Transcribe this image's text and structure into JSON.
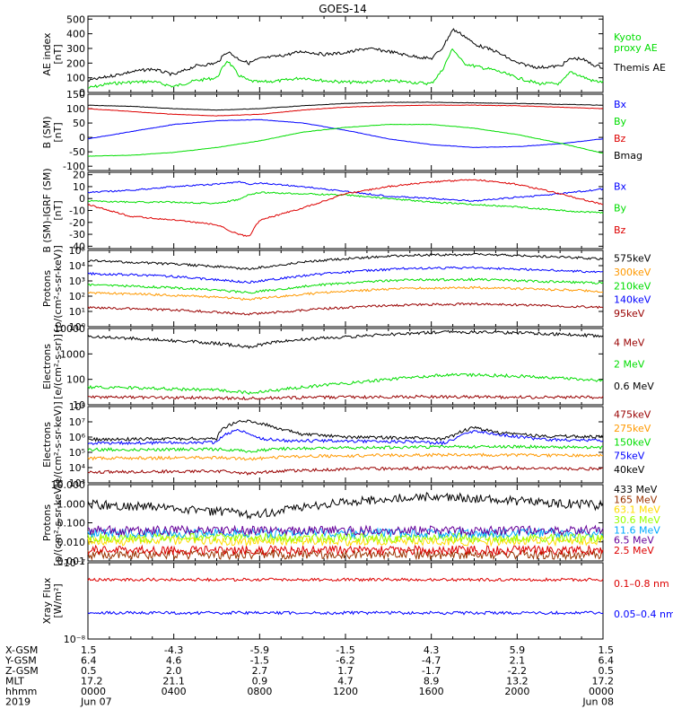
{
  "title": "GOES-14",
  "colors": {
    "black": "#000000",
    "green": "#00dd00",
    "blue": "#0000ff",
    "red": "#dd0000",
    "orange": "#ff9900",
    "darkred": "#990000",
    "cyan": "#00aaff",
    "lime": "#99ff00",
    "yellow": "#ffdd00",
    "purple": "#660099",
    "brown": "#993300"
  },
  "chart_data": [
    {
      "type": "line",
      "ylabel": "AE index\n[nT]",
      "yticks": [
        "0",
        "100",
        "200",
        "300",
        "400",
        "500"
      ],
      "ylim": [
        0,
        520
      ],
      "xlim": [
        0,
        24
      ],
      "series": [
        {
          "name": "Kyoto\nproxy AE",
          "color": "#00dd00",
          "x": [
            0,
            1,
            2,
            3,
            4,
            5,
            6,
            6.5,
            7,
            7.5,
            8,
            9,
            10,
            11,
            12,
            13,
            14,
            15,
            16,
            16.5,
            17,
            17.5,
            18,
            19,
            20,
            21,
            22,
            22.5,
            23,
            23.5,
            24
          ],
          "y": [
            30,
            60,
            70,
            75,
            40,
            80,
            100,
            220,
            120,
            80,
            70,
            80,
            100,
            80,
            70,
            70,
            80,
            70,
            60,
            150,
            300,
            200,
            180,
            150,
            100,
            60,
            60,
            140,
            110,
            80,
            70
          ]
        },
        {
          "name": "Themis AE",
          "color": "#000000",
          "x": [
            0,
            1,
            2,
            3,
            4,
            5,
            6,
            6.5,
            7,
            7.5,
            8,
            9,
            10,
            11,
            12,
            13,
            14,
            15,
            16,
            16.5,
            17,
            17.5,
            18,
            19,
            20,
            21,
            22,
            22.5,
            23,
            23.5,
            24
          ],
          "y": [
            80,
            110,
            140,
            160,
            120,
            180,
            200,
            280,
            230,
            200,
            230,
            250,
            280,
            260,
            270,
            300,
            280,
            250,
            230,
            300,
            430,
            390,
            330,
            280,
            200,
            170,
            180,
            230,
            230,
            190,
            170
          ]
        }
      ]
    },
    {
      "type": "line",
      "ylabel": "B (SM)\n[nT]",
      "yticks": [
        "-100",
        "-50",
        "0",
        "50",
        "100",
        "150"
      ],
      "ylim": [
        -115,
        150
      ],
      "xlim": [
        0,
        24
      ],
      "series": [
        {
          "name": "Bx",
          "color": "#0000ff",
          "x": [
            0,
            2,
            4,
            6,
            8,
            10,
            12,
            14,
            16,
            18,
            20,
            22,
            24
          ],
          "y": [
            -5,
            20,
            45,
            58,
            62,
            50,
            25,
            -5,
            -25,
            -35,
            -32,
            -22,
            -5
          ]
        },
        {
          "name": "By",
          "color": "#00dd00",
          "x": [
            0,
            2,
            4,
            6,
            8,
            10,
            12,
            14,
            16,
            18,
            20,
            22,
            24
          ],
          "y": [
            -65,
            -62,
            -52,
            -35,
            -12,
            18,
            35,
            45,
            45,
            32,
            10,
            -20,
            -55
          ]
        },
        {
          "name": "Bz",
          "color": "#dd0000",
          "x": [
            0,
            2,
            4,
            6,
            8,
            10,
            12,
            14,
            16,
            18,
            20,
            22,
            24
          ],
          "y": [
            100,
            90,
            80,
            75,
            80,
            95,
            105,
            110,
            112,
            112,
            110,
            105,
            100
          ]
        },
        {
          "name": "Bmag",
          "color": "#000000",
          "x": [
            0,
            2,
            4,
            6,
            8,
            10,
            12,
            14,
            16,
            18,
            20,
            22,
            24
          ],
          "y": [
            112,
            108,
            100,
            95,
            100,
            110,
            118,
            122,
            122,
            120,
            118,
            115,
            112
          ]
        }
      ]
    },
    {
      "type": "line",
      "ylabel": "B (SM)-IGRF (SM)\n[nT]",
      "yticks": [
        "-40",
        "-30",
        "-20",
        "-10",
        "0",
        "10",
        "20"
      ],
      "ylim": [
        -42,
        22
      ],
      "xlim": [
        0,
        24
      ],
      "series": [
        {
          "name": "Bx",
          "color": "#0000ff",
          "x": [
            0,
            2,
            4,
            6,
            7,
            7.5,
            8,
            10,
            12,
            14,
            16,
            18,
            20,
            22,
            24
          ],
          "y": [
            5,
            7,
            10,
            12,
            14,
            12,
            13,
            10,
            6,
            2,
            0,
            -2,
            1,
            4,
            8
          ]
        },
        {
          "name": "By",
          "color": "#00dd00",
          "x": [
            0,
            2,
            4,
            6,
            7,
            7.5,
            8,
            10,
            12,
            14,
            16,
            18,
            20,
            22,
            24
          ],
          "y": [
            -2,
            -3,
            -3,
            -4,
            -1,
            3,
            5,
            4,
            3,
            0,
            -3,
            -5,
            -7,
            -10,
            -12
          ]
        },
        {
          "name": "Bz",
          "color": "#dd0000",
          "x": [
            0,
            2,
            4,
            6,
            7,
            7.5,
            8,
            10,
            12,
            14,
            16,
            18,
            20,
            22,
            24
          ],
          "y": [
            -5,
            -15,
            -18,
            -22,
            -30,
            -32,
            -18,
            -8,
            4,
            10,
            14,
            16,
            12,
            4,
            -5
          ]
        }
      ]
    },
    {
      "type": "line",
      "scale": "log",
      "ylabel": "Protons\n[p/(cm²-s-sr-keV)]",
      "yticks": [
        "10⁰",
        "10¹",
        "10²",
        "10³",
        "10⁴",
        "10⁵"
      ],
      "ylim": [
        1,
        150000
      ],
      "xlim": [
        0,
        24
      ],
      "series": [
        {
          "name": "575keV",
          "color": "#000000",
          "x": [
            0,
            3,
            6,
            7.5,
            9,
            12,
            15,
            18,
            21,
            24
          ],
          "y": [
            30000,
            20000,
            12000,
            8000,
            15000,
            40000,
            70000,
            80000,
            60000,
            40000
          ]
        },
        {
          "name": "300keV",
          "color": "#ff9900",
          "x": [
            0,
            3,
            6,
            7.5,
            9,
            12,
            15,
            18,
            21,
            24
          ],
          "y": [
            200,
            150,
            100,
            70,
            110,
            250,
            400,
            450,
            350,
            250
          ]
        },
        {
          "name": "210keV",
          "color": "#00dd00",
          "x": [
            0,
            3,
            6,
            7.5,
            9,
            12,
            15,
            18,
            21,
            24
          ],
          "y": [
            700,
            500,
            300,
            200,
            350,
            900,
            1500,
            1600,
            1200,
            900
          ]
        },
        {
          "name": "140keV",
          "color": "#0000ff",
          "x": [
            0,
            3,
            6,
            7.5,
            9,
            12,
            15,
            18,
            21,
            24
          ],
          "y": [
            4000,
            3000,
            1500,
            1000,
            1800,
            5000,
            9000,
            10000,
            7000,
            5000
          ]
        },
        {
          "name": "95keV",
          "color": "#990000",
          "x": [
            0,
            3,
            6,
            7.5,
            9,
            12,
            15,
            18,
            21,
            24
          ],
          "y": [
            20,
            15,
            10,
            7,
            10,
            20,
            30,
            35,
            28,
            20
          ]
        }
      ]
    },
    {
      "type": "line",
      "scale": "log",
      "ylabel": "Electrons\n[e/(cm²-s-sr)]",
      "yticks": [
        "10",
        "100",
        "1000",
        "10000"
      ],
      "ylim": [
        10,
        11000
      ],
      "xlim": [
        0,
        24
      ],
      "series": [
        {
          "name": "4 MeV",
          "color": "#990000",
          "x": [
            0,
            6,
            7.5,
            9,
            12,
            16,
            20,
            24
          ],
          "y": [
            20,
            19,
            18,
            19,
            20,
            21,
            20,
            20
          ]
        },
        {
          "name": "2 MeV",
          "color": "#00dd00",
          "x": [
            0,
            3,
            6,
            7.5,
            9,
            12,
            15,
            17,
            20,
            24
          ],
          "y": [
            50,
            45,
            38,
            30,
            40,
            70,
            120,
            160,
            140,
            90
          ]
        },
        {
          "name": "0.6 MeV",
          "color": "#000000",
          "x": [
            0,
            3,
            6,
            7.5,
            9,
            12,
            15,
            17,
            20,
            24
          ],
          "y": [
            5500,
            4000,
            2800,
            2000,
            3500,
            5000,
            7000,
            8000,
            7500,
            5500
          ]
        }
      ]
    },
    {
      "type": "line",
      "scale": "log",
      "ylabel": "Electrons\n[e/(cm²-s-sr-keV)]",
      "yticks": [
        "10³",
        "10⁴",
        "10⁵",
        "10⁶",
        "10⁷",
        "10⁸"
      ],
      "ylim": [
        1000,
        100000000
      ],
      "xlim": [
        0,
        24
      ],
      "series": [
        {
          "name": "475keV",
          "color": "#990000",
          "x": [
            0,
            6,
            7.5,
            9,
            12,
            15,
            18,
            21,
            24
          ],
          "y": [
            5000,
            6000,
            4000,
            6000,
            8000,
            9000,
            10000,
            9000,
            8000
          ]
        },
        {
          "name": "275keV",
          "color": "#ff9900",
          "x": [
            0,
            6,
            7.5,
            9,
            12,
            15,
            18,
            21,
            24
          ],
          "y": [
            40000,
            45000,
            35000,
            50000,
            60000,
            65000,
            70000,
            65000,
            60000
          ]
        },
        {
          "name": "150keV",
          "color": "#00dd00",
          "x": [
            0,
            6,
            7.5,
            9,
            12,
            15,
            18,
            21,
            24
          ],
          "y": [
            150000,
            160000,
            120000,
            170000,
            200000,
            220000,
            240000,
            230000,
            210000
          ]
        },
        {
          "name": "75keV",
          "color": "#0000ff",
          "x": [
            0,
            6,
            7,
            7.5,
            8,
            9,
            12,
            15,
            16.5,
            17,
            18,
            19,
            21,
            24
          ],
          "y": [
            400000,
            450000,
            3000000,
            1500000,
            800000,
            600000,
            550000,
            500000,
            400000,
            600000,
            2500000,
            1500000,
            700000,
            600000
          ]
        },
        {
          "name": "40keV",
          "color": "#000000",
          "x": [
            0,
            6,
            7,
            7.5,
            8,
            9,
            10,
            12,
            15,
            16.5,
            17,
            18,
            19,
            21,
            24
          ],
          "y": [
            700000,
            800000,
            10000000,
            11000000,
            8000000,
            3000000,
            1500000,
            1000000,
            900000,
            700000,
            1200000,
            4000000,
            2000000,
            1200000,
            1000000
          ]
        }
      ]
    },
    {
      "type": "line",
      "scale": "log",
      "ylabel": "Protons\n[p/(cm²-s-sr-keV)]",
      "yticks": [
        "0.001",
        "0.010",
        "0.100",
        "1.000",
        "10.000"
      ],
      "ylim": [
        0.0006,
        60
      ],
      "xlim": [
        0,
        24
      ],
      "series": [
        {
          "name": "433 MeV",
          "color": "#000000",
          "x": [
            0,
            3,
            6,
            7.5,
            9,
            12,
            15,
            16.5,
            18,
            21,
            24
          ],
          "y": [
            3,
            2,
            1,
            0.7,
            1,
            4,
            8,
            10,
            7,
            4,
            2.5
          ]
        },
        {
          "name": "165 MeV",
          "color": "#993300",
          "x": [
            0,
            12,
            24
          ],
          "y": [
            0.0015,
            0.0016,
            0.0015
          ]
        },
        {
          "name": "63.1 MeV",
          "color": "#ffdd00",
          "x": [
            0,
            12,
            24
          ],
          "y": [
            0.012,
            0.012,
            0.012
          ]
        },
        {
          "name": "30.6 MeV",
          "color": "#99ff00",
          "x": [
            0,
            12,
            24
          ],
          "y": [
            0.02,
            0.02,
            0.02
          ]
        },
        {
          "name": "11.6 MeV",
          "color": "#00aaff",
          "x": [
            0,
            12,
            24
          ],
          "y": [
            0.04,
            0.04,
            0.04
          ]
        },
        {
          "name": "6.5 MeV",
          "color": "#660099",
          "x": [
            0,
            12,
            24
          ],
          "y": [
            0.06,
            0.06,
            0.06
          ]
        },
        {
          "name": "2.5 MeV",
          "color": "#dd0000",
          "x": [
            0,
            12,
            24
          ],
          "y": [
            0.003,
            0.003,
            0.003
          ]
        }
      ]
    },
    {
      "type": "line",
      "scale": "log",
      "ylabel": "Xray Flux\n[W/m²]",
      "yticks": [
        "10⁻⁸",
        "10⁻⁷"
      ],
      "ylim": [
        1e-08,
        1e-07
      ],
      "xlim": [
        0,
        24
      ],
      "series": [
        {
          "name": "0.1–0.8 nm",
          "color": "#dd0000",
          "x": [
            0,
            24
          ],
          "y": [
            6e-08,
            6e-08
          ]
        },
        {
          "name": "0.05–0.4 nm",
          "color": "#0000ff",
          "x": [
            0,
            24
          ],
          "y": [
            2.2e-08,
            2.2e-08
          ]
        }
      ]
    }
  ],
  "ephemeris": {
    "row_labels": [
      "X-GSM",
      "Y-GSM",
      "Z-GSM",
      "MLT",
      "hhmm",
      "2019"
    ],
    "columns": [
      {
        "values": [
          "1.5",
          "6.4",
          "0.5",
          "17.2",
          "0000",
          "Jun 07"
        ]
      },
      {
        "values": [
          "-4.3",
          "4.6",
          "2.0",
          "21.1",
          "0400",
          ""
        ]
      },
      {
        "values": [
          "-5.9",
          "-1.5",
          "2.7",
          "0.9",
          "0800",
          ""
        ]
      },
      {
        "values": [
          "-1.5",
          "-6.2",
          "1.7",
          "4.7",
          "1200",
          ""
        ]
      },
      {
        "values": [
          "4.3",
          "-4.7",
          "-1.7",
          "8.9",
          "1600",
          ""
        ]
      },
      {
        "values": [
          "5.9",
          "2.1",
          "-2.2",
          "13.2",
          "2000",
          ""
        ]
      },
      {
        "values": [
          "1.5",
          "6.4",
          "0.5",
          "17.2",
          "0000",
          "Jun 08"
        ]
      }
    ]
  }
}
